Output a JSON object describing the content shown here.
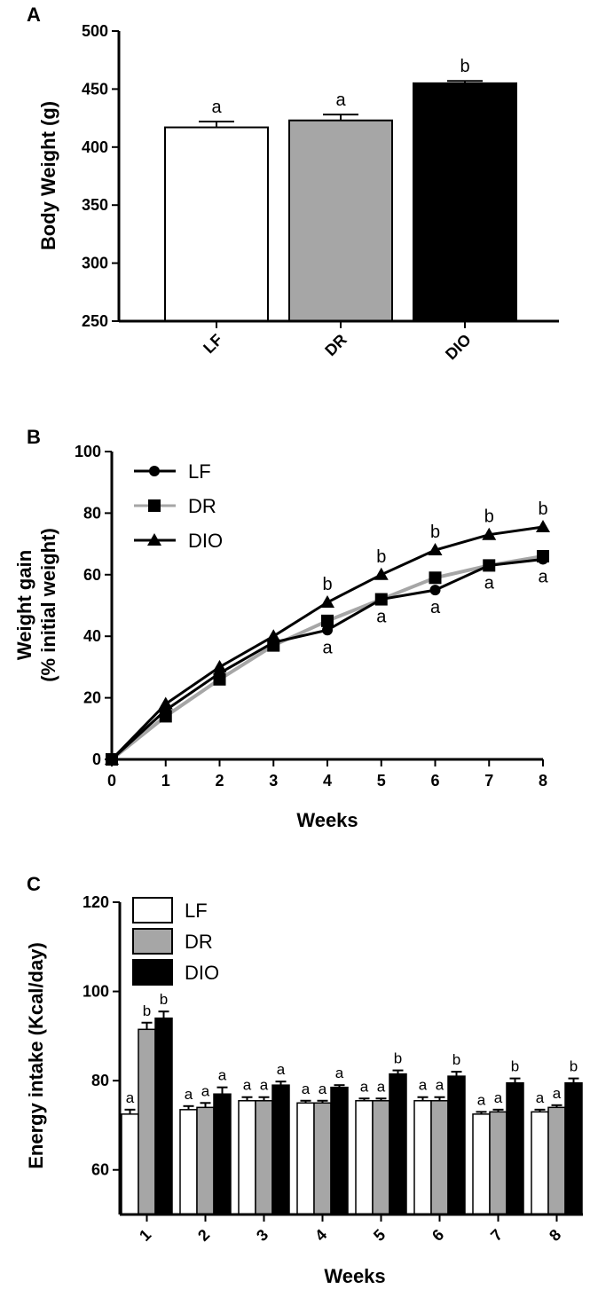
{
  "colors": {
    "LF": "#ffffff",
    "DR": "#a6a6a6",
    "DIO": "#000000",
    "DR_line": "#a6a6a6",
    "stroke": "#000000"
  },
  "chart_data": [
    {
      "panel": "A",
      "type": "bar",
      "ylabel": "Body Weight (g)",
      "xlabel": "",
      "ylim": [
        250,
        500
      ],
      "yticks": [
        250,
        300,
        350,
        400,
        450,
        500
      ],
      "categories": [
        "LF",
        "DR",
        "DIO"
      ],
      "values": [
        417,
        423,
        455
      ],
      "errors": [
        5,
        5,
        2
      ],
      "annotations": [
        "a",
        "a",
        "b"
      ]
    },
    {
      "panel": "B",
      "type": "line",
      "ylabel": "Weight gain (% initial weight)",
      "ylabel_lines": [
        "Weight gain",
        "(% initial weight)"
      ],
      "xlabel": "Weeks",
      "xlim": [
        0,
        8
      ],
      "ylim": [
        0,
        100
      ],
      "xticks": [
        0,
        1,
        2,
        3,
        4,
        5,
        6,
        7,
        8
      ],
      "yticks": [
        0,
        20,
        40,
        60,
        80,
        100
      ],
      "x": [
        0,
        1,
        2,
        3,
        4,
        5,
        6,
        7,
        8
      ],
      "series": [
        {
          "name": "LF",
          "marker": "circle",
          "values": [
            0,
            16,
            28,
            38,
            42,
            52,
            55,
            63,
            65
          ]
        },
        {
          "name": "DR",
          "marker": "square",
          "values": [
            0,
            14,
            26,
            37,
            45,
            52,
            59,
            63,
            66
          ]
        },
        {
          "name": "DIO",
          "marker": "triangle",
          "values": [
            0,
            18,
            30,
            40,
            51,
            60,
            68,
            73,
            75.5
          ]
        }
      ],
      "annotations_upper": {
        "x": [
          4,
          5,
          6,
          7,
          8
        ],
        "labels": [
          "b",
          "b",
          "b",
          "b",
          "b"
        ]
      },
      "annotations_lower": {
        "x": [
          4,
          5,
          6,
          7,
          8
        ],
        "labels": [
          "a",
          "a",
          "a",
          "a",
          "a"
        ]
      }
    },
    {
      "panel": "C",
      "type": "bar",
      "ylabel": "Energy intake (Kcal/day)",
      "xlabel": "Weeks",
      "ylim": [
        50,
        120
      ],
      "yticks": [
        60,
        80,
        100,
        120
      ],
      "categories": [
        "1",
        "2",
        "3",
        "4",
        "5",
        "6",
        "7",
        "8"
      ],
      "series": [
        {
          "name": "LF",
          "values": [
            72.5,
            73.5,
            75.5,
            75,
            75.5,
            75.5,
            72.5,
            73
          ],
          "errors": [
            1,
            0.8,
            0.8,
            0.5,
            0.5,
            0.8,
            0.5,
            0.5
          ]
        },
        {
          "name": "DR",
          "values": [
            91.5,
            74,
            75.5,
            75,
            75.5,
            75.5,
            73,
            74
          ],
          "errors": [
            1.5,
            1,
            0.8,
            0.5,
            0.5,
            0.8,
            0.5,
            0.5
          ]
        },
        {
          "name": "DIO",
          "values": [
            94,
            77,
            79,
            78.5,
            81.5,
            81,
            79.5,
            79.5
          ],
          "errors": [
            1.5,
            1.5,
            0.8,
            0.5,
            0.8,
            1,
            1,
            1
          ]
        }
      ],
      "annotations": [
        [
          "a",
          "b",
          "b"
        ],
        [
          "a",
          "a",
          "a"
        ],
        [
          "a",
          "a",
          "a"
        ],
        [
          "a",
          "a",
          "a"
        ],
        [
          "a",
          "a",
          "b"
        ],
        [
          "a",
          "a",
          "b"
        ],
        [
          "a",
          "a",
          "b"
        ],
        [
          "a",
          "a",
          "b"
        ]
      ]
    }
  ]
}
